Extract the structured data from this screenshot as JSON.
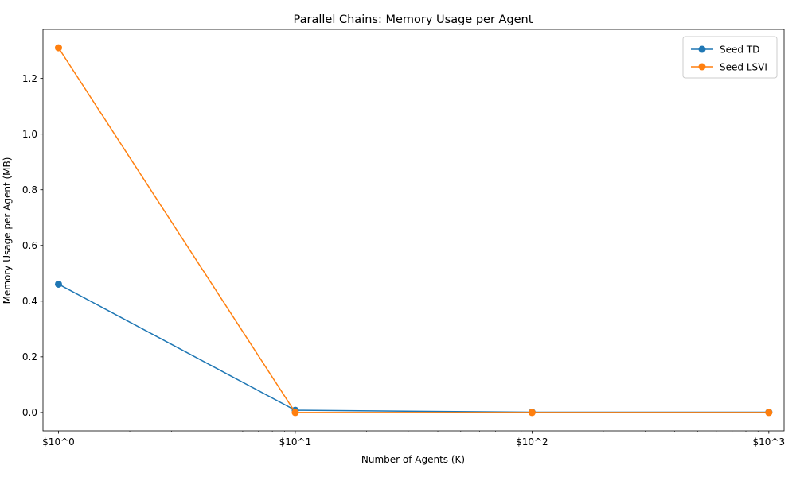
{
  "chart_data": {
    "type": "line",
    "title": "Parallel Chains: Memory Usage per Agent",
    "xlabel": "Number of Agents (K)",
    "ylabel": "Memory Usage per Agent (MB)",
    "x_scale": "log",
    "x": [
      1,
      10,
      100,
      1000
    ],
    "x_tick_labels": [
      "$10^0",
      "$10^1",
      "$10^2",
      "$10^3"
    ],
    "xlim": [
      0.86,
      1160
    ],
    "ylim": [
      -0.066,
      1.376
    ],
    "y_ticks": [
      0.0,
      0.2,
      0.4,
      0.6,
      0.8,
      1.0,
      1.2
    ],
    "y_tick_labels": [
      "0.0",
      "0.2",
      "0.4",
      "0.6",
      "0.8",
      "1.0",
      "1.2"
    ],
    "grid": false,
    "legend_position": "top-right",
    "series": [
      {
        "name": "Seed TD",
        "color": "#1f77b4",
        "values": [
          0.461,
          0.008,
          0.001,
          0.001
        ]
      },
      {
        "name": "Seed LSVI",
        "color": "#ff7f0e",
        "values": [
          1.31,
          0.0,
          0.0,
          0.0
        ]
      }
    ]
  }
}
